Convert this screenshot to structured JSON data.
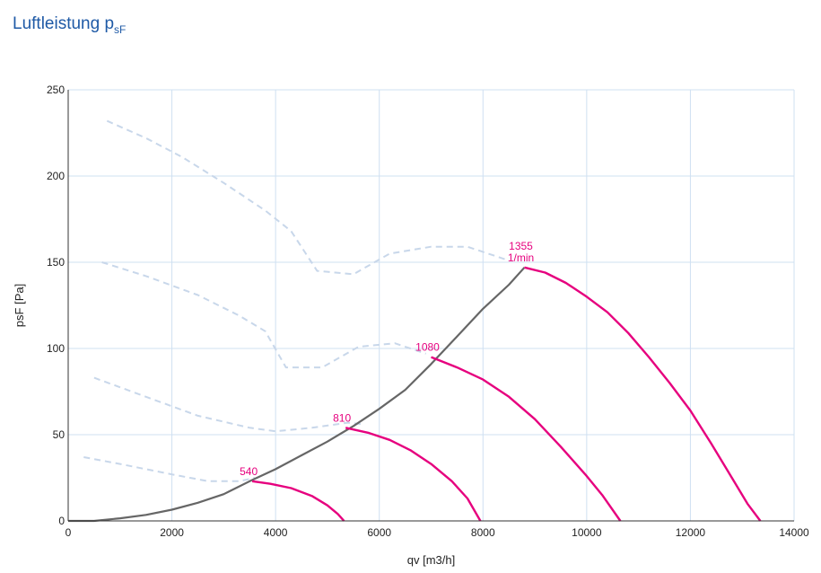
{
  "header": {
    "title_main": "Luftleistung p",
    "title_sub": "sF"
  },
  "colors": {
    "title": "#1f5aa6",
    "grid": "#cfe0f2",
    "fan_curve": "#e6007e",
    "system_curve": "#666666",
    "efficiency_curve": "#c8d7ea"
  },
  "chart_data": {
    "type": "line",
    "title": "Luftleistung psF",
    "xlabel": "qv [m3/h]",
    "ylabel": "psF [Pa]",
    "xlim": [
      0,
      14000
    ],
    "ylim": [
      0,
      250
    ],
    "xticks": [
      0,
      2000,
      4000,
      6000,
      8000,
      10000,
      12000,
      14000
    ],
    "yticks": [
      0,
      50,
      100,
      150,
      200,
      250
    ],
    "xtick_labels": [
      "0",
      "2000",
      "4000",
      "6000",
      "8000",
      "10000",
      "12000",
      "14000"
    ],
    "ytick_labels": [
      "0",
      "50",
      "100",
      "150",
      "200",
      "250"
    ],
    "grid": true,
    "system_curve": {
      "points": [
        [
          0,
          0
        ],
        [
          500,
          0
        ],
        [
          1000,
          1.5
        ],
        [
          1500,
          3.5
        ],
        [
          2000,
          6.5
        ],
        [
          2500,
          10.5
        ],
        [
          3000,
          15.5
        ],
        [
          3500,
          23
        ],
        [
          4000,
          30
        ],
        [
          4500,
          38
        ],
        [
          5000,
          46
        ],
        [
          5500,
          55
        ],
        [
          6000,
          65
        ],
        [
          6500,
          76
        ],
        [
          7000,
          91
        ],
        [
          7500,
          107
        ],
        [
          8000,
          123
        ],
        [
          8500,
          137
        ],
        [
          8800,
          147
        ]
      ]
    },
    "fan_curves": [
      {
        "label_top": "1355",
        "label_bottom": "1/min",
        "points": [
          [
            8800,
            147
          ],
          [
            9200,
            144
          ],
          [
            9600,
            138
          ],
          [
            10000,
            130
          ],
          [
            10400,
            121
          ],
          [
            10800,
            109
          ],
          [
            11200,
            95
          ],
          [
            11600,
            80
          ],
          [
            12000,
            64
          ],
          [
            12400,
            45
          ],
          [
            12800,
            25
          ],
          [
            13100,
            10
          ],
          [
            13350,
            0
          ]
        ]
      },
      {
        "label_top": "1080",
        "label_bottom": "",
        "points": [
          [
            7000,
            95
          ],
          [
            7500,
            89
          ],
          [
            8000,
            82
          ],
          [
            8500,
            72
          ],
          [
            9000,
            59
          ],
          [
            9500,
            43
          ],
          [
            10000,
            26
          ],
          [
            10300,
            15
          ],
          [
            10650,
            0
          ]
        ]
      },
      {
        "label_top": "810",
        "label_bottom": "",
        "points": [
          [
            5350,
            54
          ],
          [
            5800,
            51
          ],
          [
            6200,
            47
          ],
          [
            6600,
            41
          ],
          [
            7000,
            33
          ],
          [
            7400,
            23
          ],
          [
            7700,
            13
          ],
          [
            7950,
            0
          ]
        ]
      },
      {
        "label_top": "540",
        "label_bottom": "",
        "points": [
          [
            3550,
            23
          ],
          [
            3900,
            21.5
          ],
          [
            4300,
            19
          ],
          [
            4700,
            14.5
          ],
          [
            5000,
            9
          ],
          [
            5200,
            4
          ],
          [
            5320,
            0
          ]
        ]
      }
    ],
    "efficiency_curves": [
      {
        "points": [
          [
            750,
            232
          ],
          [
            1500,
            222
          ],
          [
            2200,
            211
          ],
          [
            3000,
            196
          ],
          [
            3800,
            180
          ],
          [
            4300,
            168
          ],
          [
            4800,
            145
          ],
          [
            5500,
            143
          ],
          [
            6200,
            155
          ],
          [
            7000,
            159
          ],
          [
            7700,
            159
          ],
          [
            8500,
            151
          ]
        ]
      },
      {
        "points": [
          [
            650,
            150
          ],
          [
            1500,
            142
          ],
          [
            2500,
            131
          ],
          [
            3300,
            119
          ],
          [
            3800,
            110
          ],
          [
            4200,
            89
          ],
          [
            4900,
            89
          ],
          [
            5600,
            101
          ],
          [
            6300,
            103
          ],
          [
            6900,
            97
          ]
        ]
      },
      {
        "points": [
          [
            500,
            83
          ],
          [
            1500,
            72
          ],
          [
            2500,
            61
          ],
          [
            3500,
            54
          ],
          [
            4000,
            52
          ],
          [
            4700,
            54
          ],
          [
            5400,
            57
          ],
          [
            5700,
            56
          ]
        ]
      },
      {
        "points": [
          [
            300,
            37
          ],
          [
            1000,
            33
          ],
          [
            2000,
            27
          ],
          [
            2700,
            23
          ],
          [
            3300,
            23
          ],
          [
            3600,
            25
          ]
        ]
      }
    ]
  }
}
